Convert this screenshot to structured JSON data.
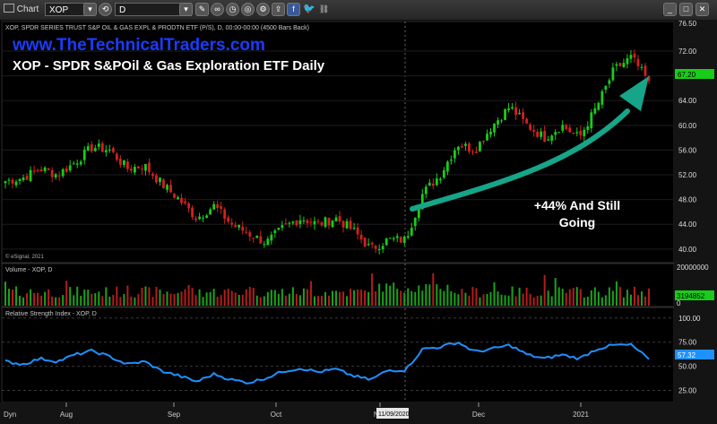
{
  "toolbar": {
    "window_title": "Chart",
    "symbol_value": "XOP",
    "interval_value": "D"
  },
  "price_panel": {
    "description": "XOP, SPDR SERIES TRUST S&P OIL & GAS EXPL & PRODTN ETF (P/S), D, 00:00-00:00 (4500 Bars Back)",
    "site": "www.TheTechnicalTraders.com",
    "title": "XOP - SPDR S&POil & Gas Exploration ETF Daily",
    "annotation_line1": "+44% And Still",
    "annotation_line2": "Going",
    "watermark": "© eSignal, 2021",
    "last_price_label": "67.20"
  },
  "volume_panel": {
    "label": "Volume - XOP, D",
    "last_value_label": "3194852",
    "top_label": "20000000",
    "bottom_label": "0"
  },
  "rsi_panel": {
    "label": "Relative Strength Index - XOP, D",
    "last_value_label": "57.32"
  },
  "xaxis": {
    "dyn_label": "Dyn",
    "cursor_date_label": "11/09/2020"
  },
  "colors": {
    "up": "#19cc19",
    "down": "#d42020",
    "rsi_line": "#1e90ff",
    "arrow": "#17a589",
    "site_text": "#1a3cff",
    "price_tag": "#19cc19",
    "rsi_tag": "#1e90ff"
  },
  "chart_data": [
    {
      "type": "candlestick",
      "title": "XOP - SPDR S&POil & Gas Exploration ETF Daily",
      "ylim": [
        37.8,
        76.5
      ],
      "y_ticks": [
        76.5,
        72.0,
        68.0,
        64.0,
        60.0,
        56.0,
        52.0,
        48.0,
        44.0,
        40.0
      ],
      "x_ticks": [
        "Aug",
        "Sep",
        "Oct",
        "Nov",
        "Dec",
        "2021"
      ],
      "close_path": [
        {
          "week": 0,
          "close": 51
        },
        {
          "week": 1,
          "close": 51.5
        },
        {
          "week": 2,
          "close": 53
        },
        {
          "week": 3,
          "close": 52
        },
        {
          "week": 4,
          "close": 54
        },
        {
          "week": 5,
          "close": 56.5
        },
        {
          "week": 6,
          "close": 56
        },
        {
          "week": 7,
          "close": 53
        },
        {
          "week": 8,
          "close": 53.5
        },
        {
          "week": 9,
          "close": 50.5
        },
        {
          "week": 10,
          "close": 48
        },
        {
          "week": 11,
          "close": 45
        },
        {
          "week": 12,
          "close": 47
        },
        {
          "week": 13,
          "close": 44
        },
        {
          "week": 14,
          "close": 42.5
        },
        {
          "week": 15,
          "close": 41
        },
        {
          "week": 16,
          "close": 43.5
        },
        {
          "week": 17,
          "close": 45
        },
        {
          "week": 18,
          "close": 44
        },
        {
          "week": 19,
          "close": 45
        },
        {
          "week": 20,
          "close": 43
        },
        {
          "week": 21,
          "close": 40
        },
        {
          "week": 22,
          "close": 41.5
        },
        {
          "week": 23,
          "close": 41.5
        },
        {
          "week": 24,
          "close": 49
        },
        {
          "week": 25,
          "close": 52
        },
        {
          "week": 26,
          "close": 57
        },
        {
          "week": 27,
          "close": 56
        },
        {
          "week": 28,
          "close": 60
        },
        {
          "week": 29,
          "close": 63
        },
        {
          "week": 30,
          "close": 60
        },
        {
          "week": 31,
          "close": 58
        },
        {
          "week": 32,
          "close": 60
        },
        {
          "week": 33,
          "close": 58
        },
        {
          "week": 34,
          "close": 63
        },
        {
          "week": 35,
          "close": 69
        },
        {
          "week": 36,
          "close": 71
        },
        {
          "week": 37,
          "close": 67
        }
      ],
      "last_price": 67.2
    },
    {
      "type": "bar",
      "title": "Volume - XOP, D",
      "ylim": [
        0,
        20000000
      ],
      "last_value": 3194852
    },
    {
      "type": "line",
      "title": "Relative Strength Index - XOP, D",
      "ylim": [
        12.5,
        110
      ],
      "y_ticks": [
        100.0,
        75.0,
        50.0,
        25.0
      ],
      "x_ticks": [
        "Aug",
        "Sep",
        "Oct",
        "Nov",
        "Dec",
        "2021"
      ],
      "values": [
        55,
        52,
        58,
        55,
        62,
        66,
        60,
        52,
        55,
        45,
        40,
        34,
        42,
        36,
        33,
        38,
        45,
        48,
        44,
        47,
        40,
        36,
        46,
        46,
        68,
        70,
        75,
        65,
        68,
        72,
        62,
        58,
        62,
        58,
        68,
        72,
        72,
        57.32
      ],
      "last_value": 57.32
    }
  ]
}
